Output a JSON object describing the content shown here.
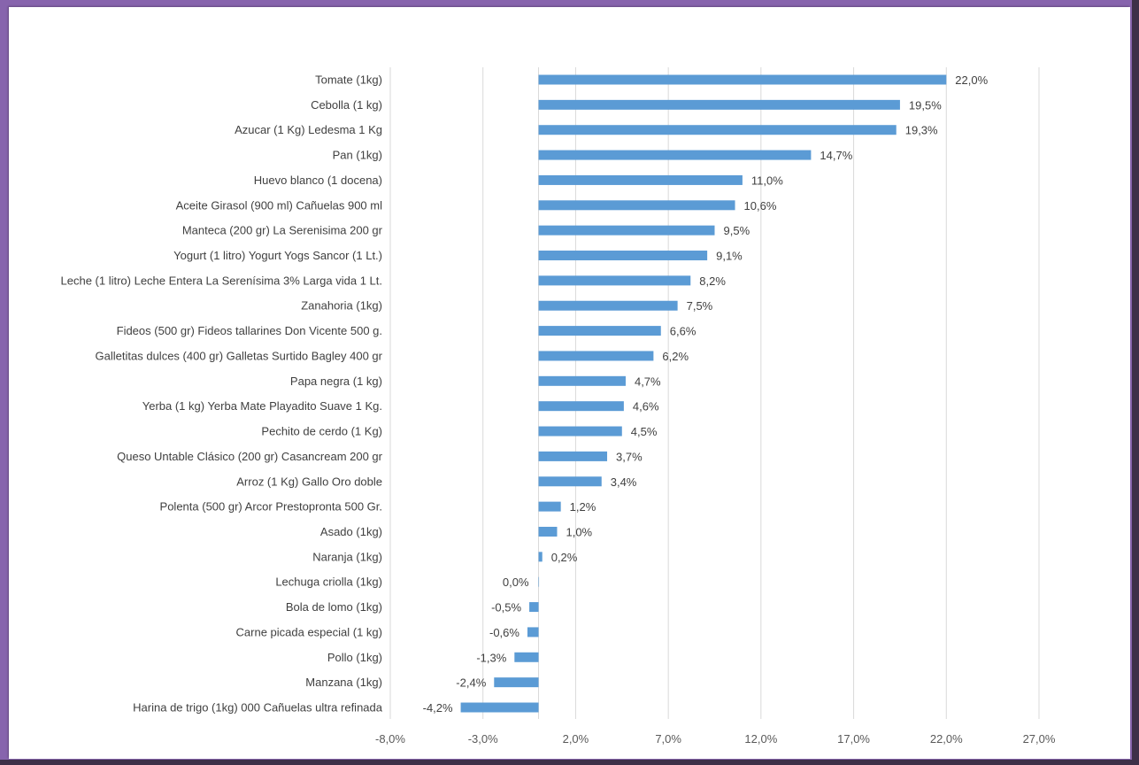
{
  "chart_data": {
    "type": "bar",
    "orientation": "horizontal",
    "title": "",
    "xlabel": "",
    "ylabel": "",
    "categories": [
      "Tomate (1kg)",
      "Cebolla (1 kg)",
      "Azucar (1 Kg) Ledesma 1 Kg",
      "Pan (1kg)",
      "Huevo blanco (1 docena)",
      "Aceite Girasol (900 ml) Cañuelas 900 ml",
      "Manteca (200 gr) La Serenisima 200 gr",
      "Yogurt (1 litro) Yogurt Yogs Sancor (1 Lt.)",
      "Leche (1 litro) Leche Entera La Serenísima 3% Larga vida 1 Lt.",
      "Zanahoria (1kg)",
      "Fideos (500 gr) Fideos tallarines Don Vicente 500 g.",
      "Galletitas dulces (400 gr) Galletas Surtido Bagley 400 gr",
      "Papa negra (1 kg)",
      "Yerba (1 kg) Yerba Mate Playadito Suave 1 Kg.",
      "Pechito de cerdo (1 Kg)",
      "Queso Untable Clásico (200 gr) Casancream 200 gr",
      "Arroz (1 Kg) Gallo Oro doble",
      "Polenta (500 gr) Arcor Prestopronta 500 Gr.",
      "Asado (1kg)",
      "Naranja (1kg)",
      "Lechuga criolla (1kg)",
      "Bola de lomo (1kg)",
      "Carne picada especial (1 kg)",
      "Pollo (1kg)",
      "Manzana (1kg)",
      "Harina de trigo (1kg) 000 Cañuelas ultra refinada"
    ],
    "values": [
      22.0,
      19.5,
      19.3,
      14.7,
      11.0,
      10.6,
      9.5,
      9.1,
      8.2,
      7.5,
      6.6,
      6.2,
      4.7,
      4.6,
      4.5,
      3.7,
      3.4,
      1.2,
      1.0,
      0.2,
      0.0,
      -0.5,
      -0.6,
      -1.3,
      -2.4,
      -4.2
    ],
    "value_labels": [
      "22,0%",
      "19,5%",
      "19,3%",
      "14,7%",
      "11,0%",
      "10,6%",
      "9,5%",
      "9,1%",
      "8,2%",
      "7,5%",
      "6,6%",
      "6,2%",
      "4,7%",
      "4,6%",
      "4,5%",
      "3,7%",
      "3,4%",
      "1,2%",
      "1,0%",
      "0,2%",
      "0,0%",
      "-0,5%",
      "-0,6%",
      "-1,3%",
      "-2,4%",
      "-4,2%"
    ],
    "xlim": [
      -8,
      27
    ],
    "xticks": [
      -8,
      -3,
      2,
      7,
      12,
      17,
      22,
      27
    ],
    "xtick_labels": [
      "-8,0%",
      "-3,0%",
      "2,0%",
      "7,0%",
      "12,0%",
      "17,0%",
      "22,0%",
      "27,0%"
    ],
    "grid": "vertical",
    "legend": "none",
    "bar_color": "#5b9bd5"
  }
}
